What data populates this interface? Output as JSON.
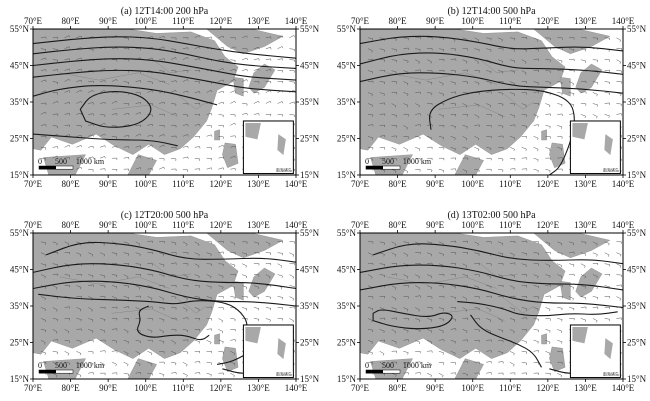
{
  "figure": {
    "panels": [
      {
        "id": "a",
        "title": "(a) 12T14:00 200 hPa",
        "level": "200 hPa",
        "x_ticks": [
          "70°E",
          "80°E",
          "90°E",
          "100°E",
          "110°E",
          "120°E",
          "130°E",
          "140°E"
        ],
        "y_ticks_left": [
          "55°N",
          "45°N",
          "35°N",
          "25°N",
          "15°N"
        ],
        "y_ticks_right": [
          "55°N",
          "45°N",
          "35°N",
          "25°N",
          "15°N"
        ],
        "scale_bar": [
          "0",
          "500",
          "1000 km"
        ],
        "inset_label": "南海诸岛"
      },
      {
        "id": "b",
        "title": "(b) 12T14:00 500 hPa",
        "level": "500 hPa",
        "x_ticks": [
          "70°E",
          "80°E",
          "90°E",
          "100°E",
          "110°E",
          "120°E",
          "130°E",
          "140°E"
        ],
        "y_ticks_left": [
          "55°N",
          "45°N",
          "35°N",
          "25°N",
          "15°N"
        ],
        "y_ticks_right": [
          "55°N",
          "45°N",
          "35°N",
          "25°N",
          "15°N"
        ],
        "scale_bar": [
          "0",
          "500",
          "1000 km"
        ],
        "inset_label": "南海诸岛"
      },
      {
        "id": "c",
        "title": "(c) 12T20:00 500 hPa",
        "level": "500 hPa",
        "x_ticks": [
          "70°E",
          "80°E",
          "90°E",
          "100°E",
          "110°E",
          "120°E",
          "130°E",
          "140°E"
        ],
        "y_ticks_left": [
          "55°N",
          "45°N",
          "35°N",
          "25°N",
          "15°N"
        ],
        "y_ticks_right": [
          "55°N",
          "45°N",
          "35°N",
          "25°N",
          "15°N"
        ],
        "scale_bar": [
          "0",
          "500",
          "1000 km"
        ],
        "inset_label": "南海诸岛"
      },
      {
        "id": "d",
        "title": "(d) 13T02:00 500 hPa",
        "level": "500 hPa",
        "x_ticks": [
          "70°E",
          "80°E",
          "90°E",
          "100°E",
          "110°E",
          "120°E",
          "130°E",
          "140°E"
        ],
        "y_ticks_left": [
          "55°N",
          "45°N",
          "35°N",
          "25°N",
          "15°N"
        ],
        "y_ticks_right": [
          "55°N",
          "45°N",
          "35°N",
          "25°N",
          "15°N"
        ],
        "scale_bar": [
          "0",
          "500",
          "1000 km"
        ],
        "inset_label": "南海诸岛"
      }
    ],
    "colors": {
      "land": "#a8a8a8",
      "sea": "#ffffff",
      "contour": "#1a1a1a",
      "wind": "#555555",
      "frame": "#000000"
    }
  }
}
